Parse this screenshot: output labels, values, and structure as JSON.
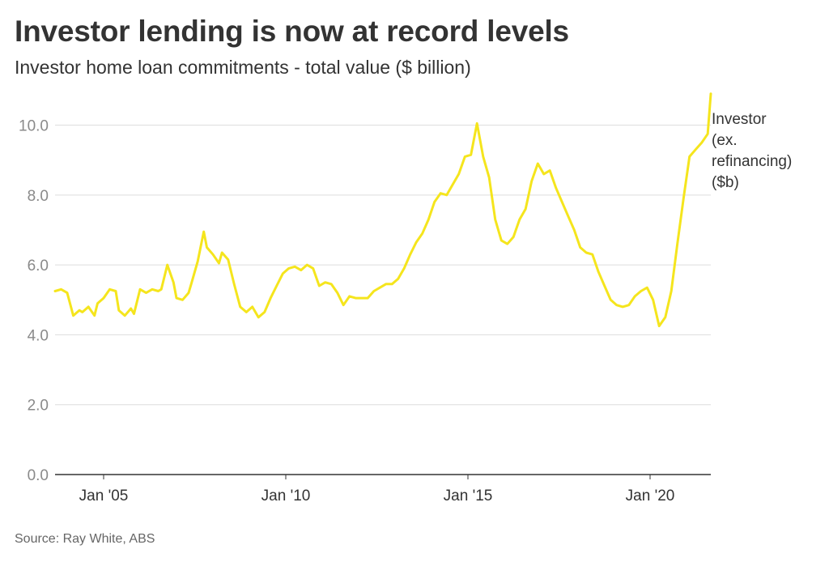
{
  "header": {
    "title": "Investor lending is now at record levels",
    "subtitle": "Investor home loan commitments - total value ($ billion)"
  },
  "footer": {
    "source": "Source: Ray White, ABS"
  },
  "colors": {
    "line": "#f5e51d",
    "grid": "#dddddd",
    "axis": "#333333"
  },
  "chart_data": {
    "type": "line",
    "title": "Investor lending is now at record levels",
    "subtitle": "Investor home loan commitments - total value ($ billion)",
    "xlabel": "",
    "ylabel": "",
    "ylim": [
      0,
      10.8
    ],
    "xlim": [
      "2003-09",
      "2021-09"
    ],
    "y_ticks": [
      "0.0",
      "2.0",
      "4.0",
      "6.0",
      "8.0",
      "10.0"
    ],
    "x_ticks": [
      {
        "label": "Jan '05",
        "x": "2005-01"
      },
      {
        "label": "Jan '10",
        "x": "2010-01"
      },
      {
        "label": "Jan '15",
        "x": "2015-01"
      },
      {
        "label": "Jan '20",
        "x": "2020-01"
      }
    ],
    "grid": true,
    "legend": "end-of-line label",
    "series": [
      {
        "name": "Investor (ex. refinancing) ($b)",
        "label_lines": [
          "Investor",
          "(ex.",
          "refinancing)",
          "($b)"
        ],
        "x": [
          "2003-09",
          "2003-11",
          "2004-01",
          "2004-03",
          "2004-05",
          "2004-06",
          "2004-08",
          "2004-10",
          "2004-11",
          "2005-01",
          "2005-03",
          "2005-05",
          "2005-06",
          "2005-08",
          "2005-10",
          "2005-11",
          "2006-01",
          "2006-03",
          "2006-05",
          "2006-07",
          "2006-08",
          "2006-10",
          "2006-12",
          "2007-01",
          "2007-03",
          "2007-05",
          "2007-06",
          "2007-08",
          "2007-10",
          "2007-11",
          "2008-01",
          "2008-03",
          "2008-04",
          "2008-06",
          "2008-08",
          "2008-10",
          "2008-12",
          "2009-02",
          "2009-04",
          "2009-06",
          "2009-08",
          "2009-10",
          "2009-12",
          "2010-02",
          "2010-04",
          "2010-06",
          "2010-08",
          "2010-10",
          "2010-12",
          "2011-02",
          "2011-04",
          "2011-06",
          "2011-08",
          "2011-10",
          "2011-12",
          "2012-02",
          "2012-04",
          "2012-06",
          "2012-08",
          "2012-10",
          "2012-12",
          "2013-02",
          "2013-04",
          "2013-06",
          "2013-08",
          "2013-10",
          "2013-12",
          "2014-02",
          "2014-04",
          "2014-06",
          "2014-08",
          "2014-10",
          "2014-12",
          "2015-02",
          "2015-04",
          "2015-06",
          "2015-08",
          "2015-10",
          "2015-12",
          "2016-02",
          "2016-04",
          "2016-06",
          "2016-08",
          "2016-10",
          "2016-12",
          "2017-02",
          "2017-04",
          "2017-06",
          "2017-08",
          "2017-10",
          "2017-12",
          "2018-02",
          "2018-04",
          "2018-06",
          "2018-08",
          "2018-10",
          "2018-12",
          "2019-02",
          "2019-04",
          "2019-06",
          "2019-08",
          "2019-10",
          "2019-12",
          "2020-02",
          "2020-04",
          "2020-06",
          "2020-08",
          "2020-10",
          "2020-12",
          "2021-02",
          "2021-04",
          "2021-06",
          "2021-08",
          "2021-09"
        ],
        "values": [
          5.25,
          5.3,
          5.2,
          4.55,
          4.7,
          4.65,
          4.8,
          4.55,
          4.9,
          5.05,
          5.3,
          5.25,
          4.7,
          4.55,
          4.75,
          4.6,
          5.3,
          5.2,
          5.3,
          5.25,
          5.3,
          6.0,
          5.5,
          5.05,
          5.0,
          5.2,
          5.5,
          6.1,
          6.95,
          6.5,
          6.3,
          6.05,
          6.35,
          6.15,
          5.45,
          4.8,
          4.65,
          4.8,
          4.5,
          4.65,
          5.05,
          5.4,
          5.75,
          5.9,
          5.95,
          5.85,
          6.0,
          5.9,
          5.4,
          5.5,
          5.45,
          5.2,
          4.85,
          5.1,
          5.05,
          5.05,
          5.05,
          5.25,
          5.35,
          5.45,
          5.45,
          5.6,
          5.9,
          6.3,
          6.65,
          6.9,
          7.3,
          7.8,
          8.05,
          8.0,
          8.3,
          8.6,
          9.1,
          9.15,
          10.05,
          9.1,
          8.5,
          7.3,
          6.7,
          6.6,
          6.8,
          7.3,
          7.6,
          8.4,
          8.9,
          8.6,
          8.7,
          8.2,
          7.8,
          7.4,
          7.0,
          6.5,
          6.35,
          6.3,
          5.8,
          5.4,
          5.0,
          4.85,
          4.8,
          4.85,
          5.1,
          5.25,
          5.35,
          5.0,
          4.25,
          4.5,
          5.25,
          6.6,
          7.9,
          9.1,
          9.3,
          9.5,
          9.75,
          10.9
        ]
      }
    ]
  }
}
